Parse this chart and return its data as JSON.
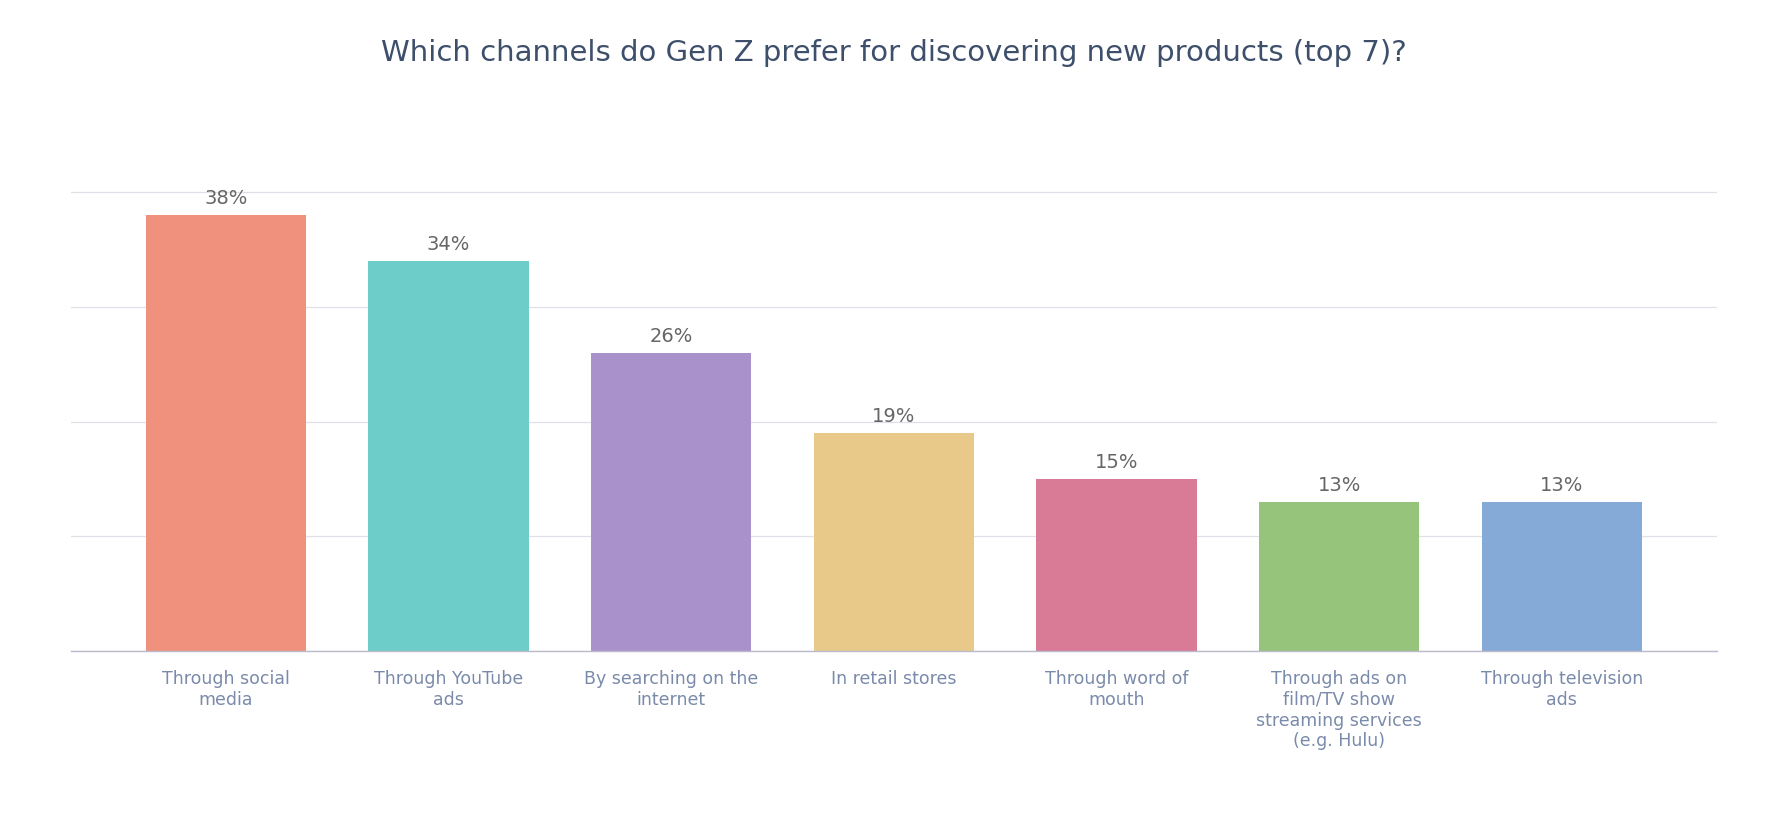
{
  "title": "Which channels do Gen Z prefer for discovering new products (top 7)?",
  "categories": [
    "Through social\nmedia",
    "Through YouTube\nads",
    "By searching on the\ninternet",
    "In retail stores",
    "Through word of\nmouth",
    "Through ads on\nfilm/TV show\nstreaming services\n(e.g. Hulu)",
    "Through television\nads"
  ],
  "values": [
    38,
    34,
    26,
    19,
    15,
    13,
    13
  ],
  "labels": [
    "38%",
    "34%",
    "26%",
    "19%",
    "15%",
    "13%",
    "13%"
  ],
  "bar_colors": [
    "#F0917E",
    "#6DCDC8",
    "#A991CC",
    "#E8C98A",
    "#D97A96",
    "#95C47A",
    "#85AAD8"
  ],
  "background_color": "#FFFFFF",
  "title_color": "#3d4f6b",
  "label_color": "#666666",
  "tick_label_color": "#7a8aaa",
  "ylim": [
    0,
    48
  ],
  "yticks": [
    0,
    10,
    20,
    30,
    40
  ],
  "grid_color": "#E0E0E8",
  "title_fontsize": 21,
  "label_fontsize": 14,
  "tick_fontsize": 12.5,
  "bar_width": 0.72
}
